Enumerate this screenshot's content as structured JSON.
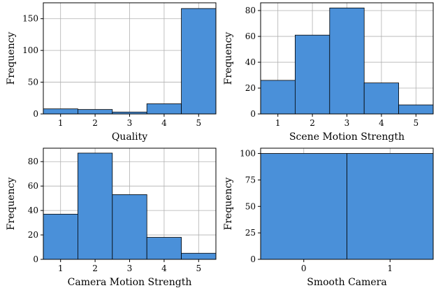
{
  "colors": {
    "bar_fill": "#4a90d9",
    "grid": "#b0b0b0"
  },
  "chart_data": [
    {
      "type": "bar",
      "xlabel": "Quality",
      "ylabel": "Frequency",
      "categories": [
        "1",
        "2",
        "3",
        "4",
        "5"
      ],
      "values": [
        8,
        7,
        3,
        16,
        166
      ],
      "xlim": [
        0.5,
        5.5
      ],
      "ylim": [
        0,
        175
      ],
      "yticks": [
        0,
        50,
        100,
        150
      ],
      "grid": true
    },
    {
      "type": "bar",
      "xlabel": "Scene Motion Strength",
      "ylabel": "Frequency",
      "categories": [
        "1",
        "2",
        "3",
        "4",
        "5"
      ],
      "values": [
        26,
        61,
        82,
        24,
        7
      ],
      "xlim": [
        0.5,
        5.5
      ],
      "ylim": [
        0,
        86
      ],
      "yticks": [
        0,
        20,
        40,
        60,
        80
      ],
      "grid": true
    },
    {
      "type": "bar",
      "xlabel": "Camera Motion Strength",
      "ylabel": "Frequency",
      "categories": [
        "1",
        "2",
        "3",
        "4",
        "5"
      ],
      "values": [
        37,
        87,
        53,
        18,
        5
      ],
      "xlim": [
        0.5,
        5.5
      ],
      "ylim": [
        0,
        91
      ],
      "yticks": [
        0,
        20,
        40,
        60,
        80
      ],
      "grid": true
    },
    {
      "type": "bar",
      "xlabel": "Smooth Camera",
      "ylabel": "Frequency",
      "categories": [
        "0",
        "1"
      ],
      "values": [
        100,
        100
      ],
      "xlim": [
        -0.5,
        1.5
      ],
      "ylim": [
        0,
        105
      ],
      "yticks": [
        0,
        25,
        50,
        75,
        100
      ],
      "grid": true
    }
  ]
}
